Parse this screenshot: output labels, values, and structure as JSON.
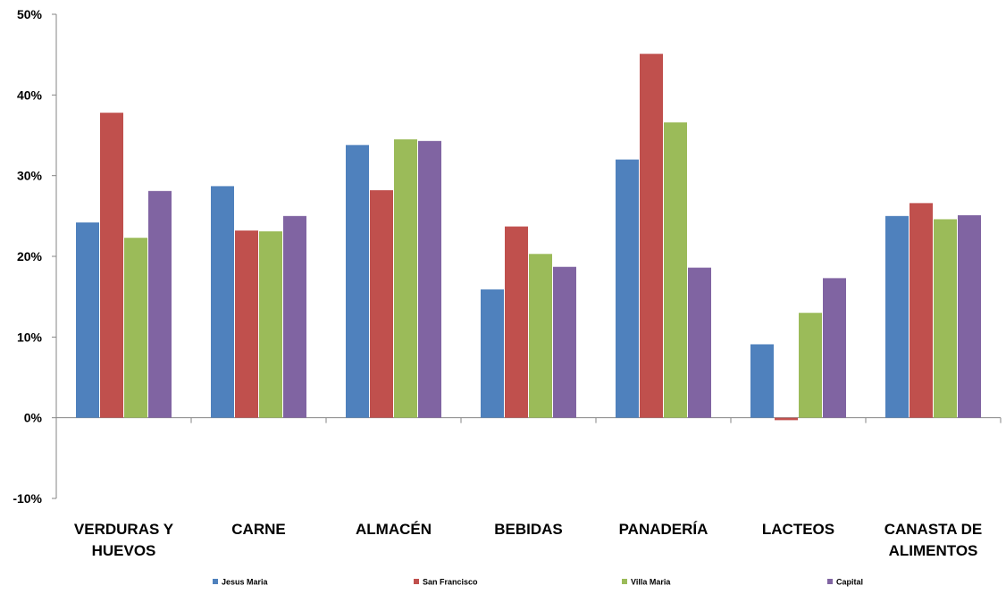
{
  "chart_data": {
    "type": "bar",
    "categories": [
      "VERDURAS Y HUEVOS",
      "CARNE",
      "ALMACÉN",
      "BEBIDAS",
      "PANADERÍA",
      "LACTEOS",
      "CANASTA DE ALIMENTOS"
    ],
    "category_lines": [
      [
        "VERDURAS Y",
        "HUEVOS"
      ],
      [
        "CARNE"
      ],
      [
        "ALMACÉN"
      ],
      [
        "BEBIDAS"
      ],
      [
        "PANADERÍA"
      ],
      [
        "LACTEOS"
      ],
      [
        "CANASTA DE",
        "ALIMENTOS"
      ]
    ],
    "series": [
      {
        "name": "Jesus Maria",
        "color": "#4F81BD",
        "values": [
          24.2,
          28.7,
          33.8,
          15.9,
          32.0,
          9.1,
          25.0
        ]
      },
      {
        "name": "San Francisco",
        "color": "#C0504D",
        "values": [
          37.8,
          23.2,
          28.2,
          23.7,
          45.1,
          -0.3,
          26.6
        ]
      },
      {
        "name": "Villa Maria",
        "color": "#9BBB59",
        "values": [
          22.3,
          23.1,
          34.5,
          20.3,
          36.6,
          13.0,
          24.6
        ]
      },
      {
        "name": "Capital",
        "color": "#8064A2",
        "values": [
          28.1,
          25.0,
          34.3,
          18.7,
          18.6,
          17.3,
          25.1
        ]
      }
    ],
    "ylim": [
      -10,
      50
    ],
    "yticks": [
      -10,
      0,
      10,
      20,
      30,
      40,
      50
    ],
    "ytick_labels": [
      "-10%",
      "0%",
      "10%",
      "20%",
      "30%",
      "40%",
      "50%"
    ],
    "title": "",
    "xlabel": "",
    "ylabel": "",
    "grid": false,
    "legend_position": "bottom"
  }
}
